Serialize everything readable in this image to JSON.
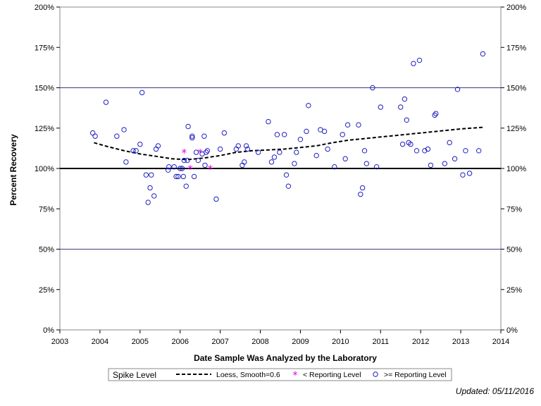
{
  "chart_data": {
    "type": "scatter",
    "xlabel": "Date Sample Was Analyzed by the Laboratory",
    "ylabel": "Percent Recovery",
    "xlim": [
      2003,
      2014
    ],
    "ylim": [
      0,
      200
    ],
    "x_ticks": [
      "2003",
      "2004",
      "2005",
      "2006",
      "2007",
      "2008",
      "2009",
      "2010",
      "2011",
      "2012",
      "2013",
      "2014"
    ],
    "y_ticks": [
      "0%",
      "25%",
      "50%",
      "75%",
      "100%",
      "125%",
      "150%",
      "175%",
      "200%"
    ],
    "reference_lines": [
      {
        "y": 50,
        "style": "thin"
      },
      {
        "y": 100,
        "style": "bold"
      },
      {
        "y": 150,
        "style": "thin"
      }
    ],
    "grid": false,
    "legend": {
      "position": "bottom",
      "title": "Spike Level",
      "entries": [
        {
          "label": "Loess, Smooth=0.6",
          "marker": "dashed-line",
          "color": "#000000"
        },
        {
          "label": "< Reporting Level",
          "marker": "asterisk",
          "color": "#e000e0"
        },
        {
          "label": ">= Reporting Level",
          "marker": "open-circle",
          "color": "#1f1fbf"
        }
      ]
    },
    "series": [
      {
        "name": "Loess, Smooth=0.6",
        "type": "line",
        "points": [
          [
            2003.85,
            116
          ],
          [
            2004.2,
            113.5
          ],
          [
            2004.6,
            111
          ],
          [
            2005.0,
            109
          ],
          [
            2005.4,
            107.5
          ],
          [
            2005.8,
            106
          ],
          [
            2006.2,
            105.5
          ],
          [
            2006.6,
            106.5
          ],
          [
            2007.0,
            108
          ],
          [
            2007.4,
            110
          ],
          [
            2007.8,
            111
          ],
          [
            2008.2,
            111.5
          ],
          [
            2008.6,
            112
          ],
          [
            2009.0,
            113
          ],
          [
            2009.4,
            114
          ],
          [
            2009.8,
            116
          ],
          [
            2010.2,
            117.5
          ],
          [
            2010.6,
            118.5
          ],
          [
            2011.0,
            119.5
          ],
          [
            2011.4,
            120.5
          ],
          [
            2011.8,
            121.5
          ],
          [
            2012.2,
            122.5
          ],
          [
            2012.6,
            123.5
          ],
          [
            2013.0,
            124.5
          ],
          [
            2013.55,
            125.5
          ]
        ]
      },
      {
        "name": "< Reporting Level",
        "type": "scatter",
        "points": [
          [
            2006.1,
            110
          ],
          [
            2006.25,
            100
          ],
          [
            2006.5,
            110
          ],
          [
            2006.75,
            100
          ]
        ]
      },
      {
        "name": ">= Reporting Level",
        "type": "scatter",
        "points": [
          [
            2003.82,
            122
          ],
          [
            2003.88,
            120
          ],
          [
            2004.15,
            141
          ],
          [
            2004.42,
            120
          ],
          [
            2004.6,
            124
          ],
          [
            2004.65,
            104
          ],
          [
            2004.83,
            111
          ],
          [
            2004.9,
            111
          ],
          [
            2005.0,
            115
          ],
          [
            2005.05,
            147
          ],
          [
            2005.15,
            96
          ],
          [
            2005.2,
            79
          ],
          [
            2005.25,
            88
          ],
          [
            2005.28,
            96
          ],
          [
            2005.35,
            83
          ],
          [
            2005.4,
            112
          ],
          [
            2005.45,
            114
          ],
          [
            2005.7,
            99
          ],
          [
            2005.72,
            101
          ],
          [
            2005.85,
            101
          ],
          [
            2005.9,
            95
          ],
          [
            2005.95,
            95
          ],
          [
            2006.0,
            100
          ],
          [
            2006.05,
            100
          ],
          [
            2006.08,
            95
          ],
          [
            2006.1,
            105
          ],
          [
            2006.15,
            89
          ],
          [
            2006.18,
            105
          ],
          [
            2006.2,
            126
          ],
          [
            2006.3,
            119
          ],
          [
            2006.3,
            120
          ],
          [
            2006.35,
            95
          ],
          [
            2006.4,
            110
          ],
          [
            2006.45,
            105
          ],
          [
            2006.55,
            109
          ],
          [
            2006.6,
            120
          ],
          [
            2006.62,
            102
          ],
          [
            2006.65,
            110
          ],
          [
            2006.68,
            111
          ],
          [
            2006.9,
            81
          ],
          [
            2007.0,
            112
          ],
          [
            2007.1,
            122
          ],
          [
            2007.4,
            112
          ],
          [
            2007.45,
            114
          ],
          [
            2007.55,
            102
          ],
          [
            2007.6,
            104
          ],
          [
            2007.65,
            114
          ],
          [
            2007.68,
            112
          ],
          [
            2007.95,
            110
          ],
          [
            2008.2,
            129
          ],
          [
            2008.28,
            104
          ],
          [
            2008.35,
            107
          ],
          [
            2008.42,
            121
          ],
          [
            2008.48,
            110
          ],
          [
            2008.6,
            121
          ],
          [
            2008.65,
            96
          ],
          [
            2008.7,
            89
          ],
          [
            2008.85,
            103
          ],
          [
            2008.9,
            110
          ],
          [
            2009.0,
            118
          ],
          [
            2009.15,
            123
          ],
          [
            2009.2,
            139
          ],
          [
            2009.4,
            108
          ],
          [
            2009.5,
            124
          ],
          [
            2009.6,
            123
          ],
          [
            2009.68,
            112
          ],
          [
            2009.85,
            101
          ],
          [
            2010.05,
            121
          ],
          [
            2010.12,
            106
          ],
          [
            2010.18,
            127
          ],
          [
            2010.45,
            127
          ],
          [
            2010.5,
            84
          ],
          [
            2010.55,
            88
          ],
          [
            2010.6,
            111
          ],
          [
            2010.65,
            103
          ],
          [
            2010.8,
            150
          ],
          [
            2010.9,
            101
          ],
          [
            2011.0,
            138
          ],
          [
            2011.5,
            138
          ],
          [
            2011.55,
            115
          ],
          [
            2011.6,
            143
          ],
          [
            2011.65,
            130
          ],
          [
            2011.7,
            116
          ],
          [
            2011.75,
            115
          ],
          [
            2011.82,
            165
          ],
          [
            2011.9,
            111
          ],
          [
            2011.97,
            167
          ],
          [
            2012.1,
            111
          ],
          [
            2012.18,
            112
          ],
          [
            2012.25,
            102
          ],
          [
            2012.35,
            133
          ],
          [
            2012.38,
            134
          ],
          [
            2012.6,
            103
          ],
          [
            2012.72,
            116
          ],
          [
            2012.85,
            106
          ],
          [
            2012.92,
            149
          ],
          [
            2013.05,
            96
          ],
          [
            2013.12,
            111
          ],
          [
            2013.22,
            97
          ],
          [
            2013.45,
            111
          ],
          [
            2013.55,
            171
          ]
        ]
      }
    ]
  },
  "footer": {
    "updated": "Updated: 05/11/2016"
  }
}
